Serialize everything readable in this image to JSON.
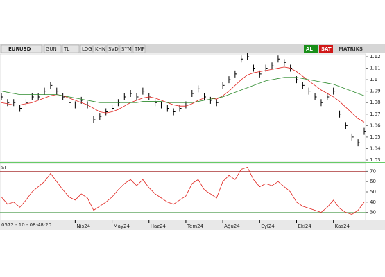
{
  "toolbar": {
    "symbol": "EURUSD",
    "buttons": [
      "GUN",
      "TL",
      "LOG",
      "KHN",
      "SVD",
      "SYM",
      "TMP"
    ],
    "right_buttons": [
      "AL",
      "SAT"
    ],
    "brand": "MATRIKS"
  },
  "status": "0572 - 10 - 08:48:20",
  "chart_data": [
    {
      "type": "ohlc",
      "xlim": [
        0,
        59
      ],
      "ylim": [
        1.03,
        1.12
      ],
      "yticks": [
        1.12,
        1.11,
        1.1,
        1.09,
        1.08,
        1.07,
        1.06,
        1.05,
        1.04,
        1.03
      ],
      "xticks": [
        {
          "value": 12,
          "label": "Nis24"
        },
        {
          "value": 18,
          "label": "May24"
        },
        {
          "value": 24,
          "label": "Haz24"
        },
        {
          "value": 30,
          "label": "Tem24"
        },
        {
          "value": 36,
          "label": "Ağu24"
        },
        {
          "value": 42,
          "label": "Eyl24"
        },
        {
          "value": 48,
          "label": "Eki24"
        },
        {
          "value": 54,
          "label": "Kas24"
        }
      ],
      "series": [
        {
          "color": "#000000",
          "values": [
            1.085,
            1.08,
            1.08,
            1.075,
            1.08,
            1.085,
            1.085,
            1.09,
            1.095,
            1.09,
            1.085,
            1.08,
            1.078,
            1.082,
            1.078,
            1.065,
            1.068,
            1.072,
            1.075,
            1.08,
            1.085,
            1.088,
            1.085,
            1.09,
            1.085,
            1.08,
            1.078,
            1.075,
            1.072,
            1.075,
            1.078,
            1.088,
            1.092,
            1.085,
            1.082,
            1.08,
            1.095,
            1.1,
            1.105,
            1.118,
            1.12,
            1.11,
            1.105,
            1.11,
            1.112,
            1.118,
            1.115,
            1.11,
            1.1,
            1.095,
            1.09,
            1.085,
            1.08,
            1.085,
            1.09,
            1.07,
            1.06,
            1.05,
            1.045,
            1.055
          ]
        },
        {
          "color": "#e0201b",
          "values": [
            1.08,
            1.079,
            1.078,
            1.078,
            1.079,
            1.08,
            1.082,
            1.084,
            1.086,
            1.087,
            1.086,
            1.084,
            1.082,
            1.08,
            1.078,
            1.075,
            1.072,
            1.071,
            1.072,
            1.074,
            1.077,
            1.08,
            1.082,
            1.084,
            1.085,
            1.084,
            1.082,
            1.08,
            1.078,
            1.077,
            1.077,
            1.079,
            1.082,
            1.084,
            1.084,
            1.083,
            1.086,
            1.09,
            1.095,
            1.1,
            1.104,
            1.106,
            1.107,
            1.108,
            1.109,
            1.11,
            1.111,
            1.11,
            1.107,
            1.103,
            1.099,
            1.095,
            1.091,
            1.088,
            1.085,
            1.081,
            1.076,
            1.071,
            1.066,
            1.063
          ]
        },
        {
          "color": "#2e8b2e",
          "values": [
            1.09,
            1.089,
            1.088,
            1.087,
            1.087,
            1.087,
            1.087,
            1.087,
            1.087,
            1.087,
            1.086,
            1.085,
            1.084,
            1.083,
            1.082,
            1.081,
            1.08,
            1.08,
            1.08,
            1.08,
            1.08,
            1.08,
            1.08,
            1.081,
            1.081,
            1.081,
            1.081,
            1.08,
            1.08,
            1.08,
            1.08,
            1.08,
            1.081,
            1.082,
            1.083,
            1.084,
            1.085,
            1.087,
            1.089,
            1.091,
            1.093,
            1.095,
            1.097,
            1.099,
            1.1,
            1.101,
            1.102,
            1.102,
            1.102,
            1.101,
            1.1,
            1.099,
            1.098,
            1.097,
            1.096,
            1.094,
            1.092,
            1.09,
            1.088,
            1.086
          ]
        }
      ]
    },
    {
      "type": "line",
      "title": "SI",
      "xlim": [
        0,
        59
      ],
      "ylim": [
        25,
        75
      ],
      "yticks": [
        70,
        60,
        50,
        40,
        30
      ],
      "levels": [
        70,
        30
      ],
      "series": [
        {
          "color": "#e0201b",
          "values": [
            45,
            38,
            40,
            35,
            42,
            50,
            55,
            60,
            68,
            60,
            52,
            45,
            42,
            48,
            44,
            32,
            36,
            40,
            45,
            52,
            58,
            62,
            56,
            62,
            54,
            48,
            44,
            40,
            38,
            42,
            46,
            58,
            62,
            52,
            48,
            44,
            60,
            66,
            62,
            72,
            74,
            62,
            55,
            58,
            56,
            60,
            55,
            50,
            40,
            36,
            34,
            32,
            30,
            35,
            42,
            34,
            30,
            28,
            32,
            40
          ]
        }
      ]
    }
  ]
}
